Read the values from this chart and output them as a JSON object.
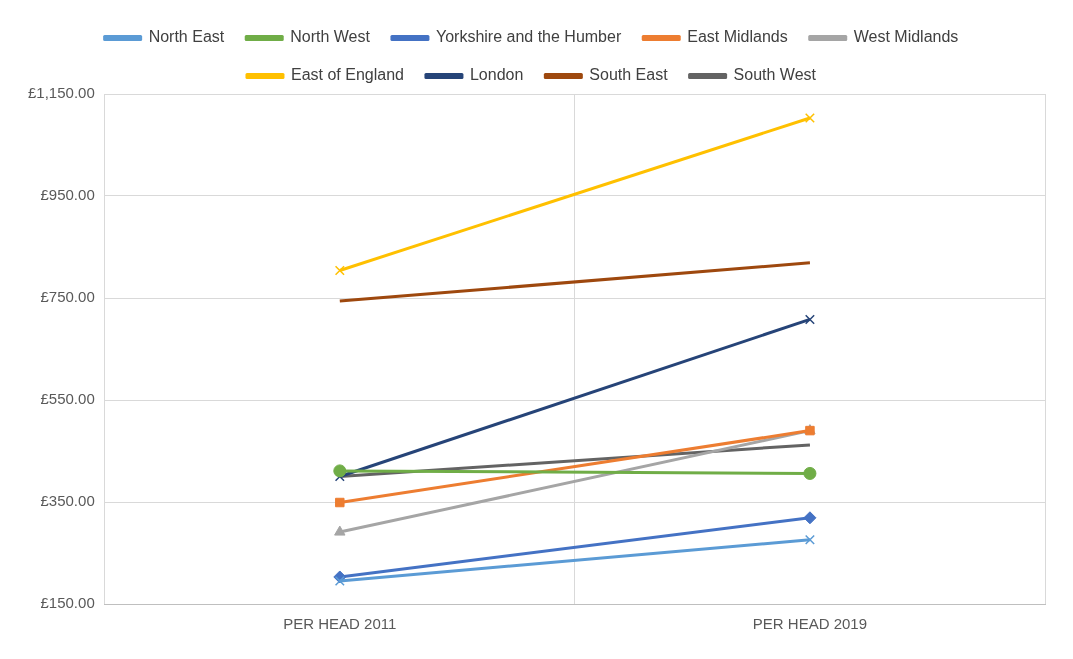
{
  "chart_data": {
    "type": "line",
    "categories": [
      "PER HEAD 2011",
      "PER HEAD 2019"
    ],
    "series": [
      {
        "name": "North East",
        "color": "#5b9bd5",
        "marker": "cross",
        "values": [
          195,
          276
        ]
      },
      {
        "name": "North West",
        "color": "#70ad47",
        "marker": "circle",
        "values": [
          411,
          406
        ]
      },
      {
        "name": "Yorkshire and the Humber",
        "color": "#4472c4",
        "marker": "diamond",
        "values": [
          203,
          319
        ]
      },
      {
        "name": "East Midlands",
        "color": "#ed7d31",
        "marker": "square",
        "values": [
          349,
          490
        ]
      },
      {
        "name": "West Midlands",
        "color": "#a5a5a5",
        "marker": "triangle",
        "values": [
          291,
          490
        ]
      },
      {
        "name": "East of England",
        "color": "#ffc000",
        "marker": "cross",
        "values": [
          804,
          1103
        ]
      },
      {
        "name": "London",
        "color": "#264478",
        "marker": "cross",
        "values": [
          400,
          708
        ]
      },
      {
        "name": "South East",
        "color": "#9e480e",
        "marker": "none",
        "values": [
          744,
          819
        ]
      },
      {
        "name": "South West",
        "color": "#636363",
        "marker": "none",
        "values": [
          400,
          462
        ]
      }
    ],
    "ylim": [
      150,
      1150
    ],
    "yticks": [
      {
        "value": 150,
        "label": "£150.00"
      },
      {
        "value": 350,
        "label": "£350.00"
      },
      {
        "value": 550,
        "label": "£550.00"
      },
      {
        "value": 750,
        "label": "£750.00"
      },
      {
        "value": 950,
        "label": "£950.00"
      },
      {
        "value": 1150,
        "label": "£1,150.00"
      }
    ],
    "grid": true,
    "legend": "top",
    "line_style": "solid"
  }
}
